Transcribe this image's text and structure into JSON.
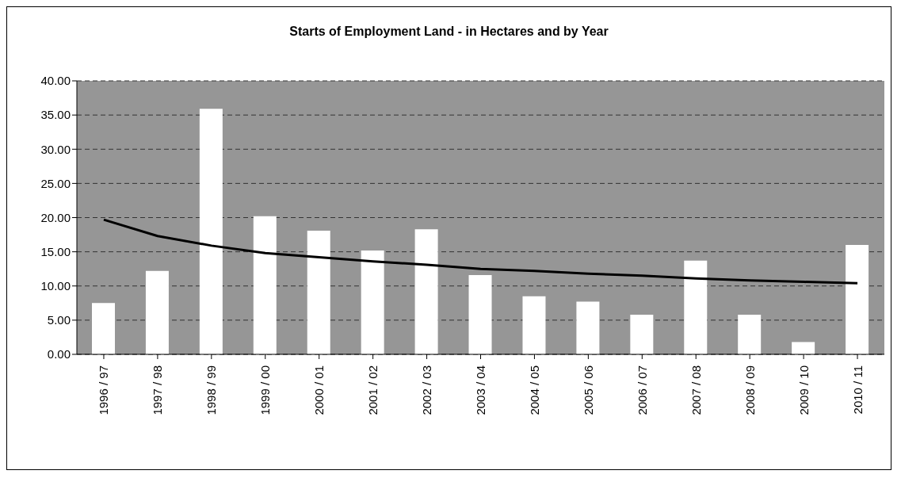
{
  "chart_data": {
    "type": "bar",
    "title": "Starts of Employment Land - in Hectares and by Year",
    "categories": [
      "1996 / 97",
      "1997 / 98",
      "1998 / 99",
      "1999 / 00",
      "2000 / 01",
      "2001 / 02",
      "2002 / 03",
      "2003 / 04",
      "2004 / 05",
      "2005 / 06",
      "2006 / 07",
      "2007 / 08",
      "2008 / 09",
      "2009 / 10",
      "2010 / 11"
    ],
    "series": [
      {
        "color": "#ffffff",
        "values": [
          7.5,
          12.2,
          35.9,
          20.2,
          18.1,
          15.2,
          18.3,
          11.6,
          8.5,
          7.7,
          5.8,
          13.7,
          5.8,
          1.8,
          16.0
        ]
      },
      {
        "type": "line",
        "color": "#000000",
        "values": [
          19.7,
          17.3,
          15.9,
          14.8,
          14.2,
          13.6,
          13.1,
          12.5,
          12.2,
          11.8,
          11.5,
          11.1,
          10.8,
          10.6,
          10.4
        ]
      }
    ],
    "ylim": [
      0,
      40
    ],
    "yticks": [
      {
        "value": 0,
        "label": "0.00"
      },
      {
        "value": 5,
        "label": "5.00"
      },
      {
        "value": 10,
        "label": "10.00"
      },
      {
        "value": 15,
        "label": "15.00"
      },
      {
        "value": 20,
        "label": "20.00"
      },
      {
        "value": 25,
        "label": "25.00"
      },
      {
        "value": 30,
        "label": "30.00"
      },
      {
        "value": 35,
        "label": "35.00"
      },
      {
        "value": 40,
        "label": "40.00"
      }
    ],
    "grid": "y"
  }
}
